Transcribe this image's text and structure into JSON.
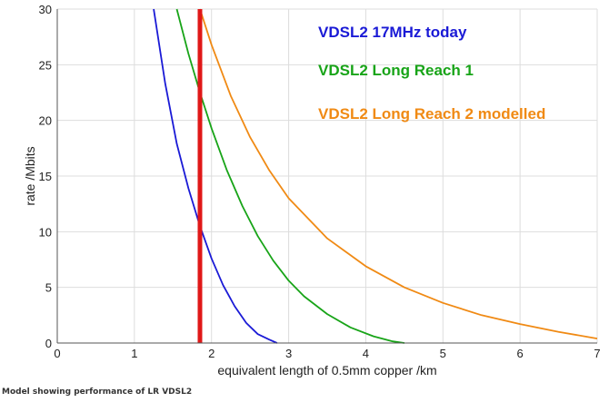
{
  "chart_data": {
    "type": "line",
    "xlabel": "equivalent length of 0.5mm copper   /km",
    "ylabel": "rate  /Mbits",
    "xlim": [
      0,
      7
    ],
    "ylim": [
      0,
      30
    ],
    "xticks": [
      0,
      1,
      2,
      3,
      4,
      5,
      6,
      7
    ],
    "yticks": [
      0,
      5,
      10,
      15,
      20,
      25,
      30
    ],
    "grid": true,
    "legend_placement": "top-right",
    "series": [
      {
        "name": "VDSL2  17MHz today",
        "color": "#1a1ad6",
        "x": [
          1.25,
          1.4,
          1.55,
          1.7,
          1.85,
          2.0,
          2.15,
          2.3,
          2.45,
          2.6,
          2.75,
          2.85
        ],
        "y": [
          30,
          23.3,
          17.9,
          13.9,
          10.5,
          7.6,
          5.2,
          3.3,
          1.8,
          0.8,
          0.3,
          0
        ]
      },
      {
        "name": "VDSL2 Long Reach 1",
        "color": "#18a418",
        "x": [
          1.55,
          1.7,
          1.85,
          2.0,
          2.2,
          2.4,
          2.6,
          2.8,
          3.0,
          3.2,
          3.5,
          3.8,
          4.1,
          4.35,
          4.5
        ],
        "y": [
          30,
          26.0,
          22.5,
          19.3,
          15.5,
          12.3,
          9.6,
          7.4,
          5.6,
          4.2,
          2.6,
          1.4,
          0.6,
          0.15,
          0
        ]
      },
      {
        "name": "VDSL2 Long Reach 2 modelled",
        "color": "#f08a14",
        "x": [
          1.85,
          2.0,
          2.25,
          2.5,
          2.75,
          3.0,
          3.5,
          4.0,
          4.5,
          5.0,
          5.5,
          6.0,
          6.5,
          7.0
        ],
        "y": [
          30,
          26.8,
          22.2,
          18.5,
          15.5,
          13.0,
          9.4,
          6.9,
          5.0,
          3.6,
          2.5,
          1.7,
          1.0,
          0.4
        ]
      }
    ],
    "marker_line": {
      "x": 1.85,
      "color": "#e01818"
    }
  },
  "caption": "Model showing performance of LR VDSL2"
}
